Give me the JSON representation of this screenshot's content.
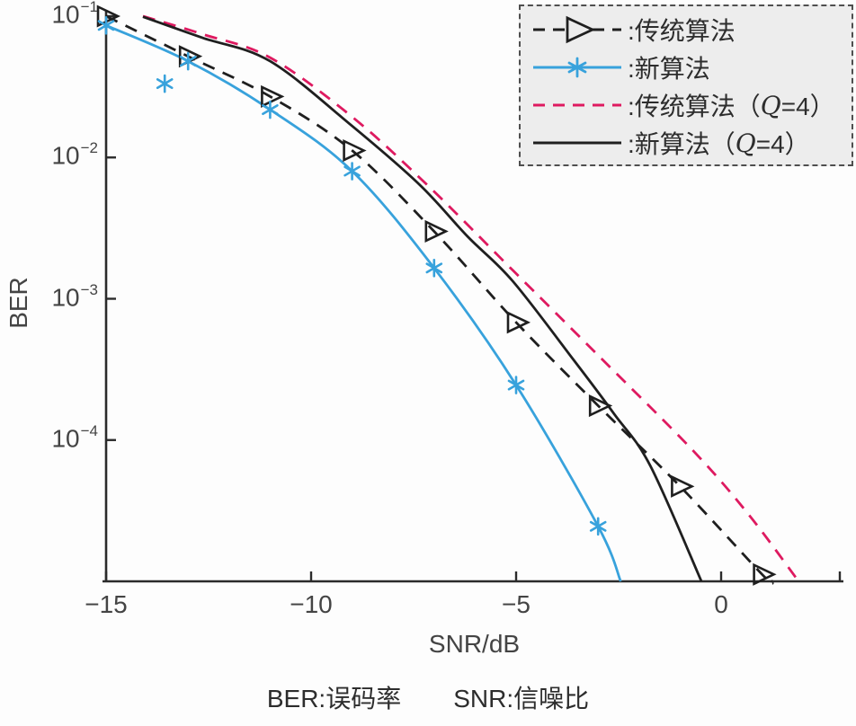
{
  "figure": {
    "caption": {
      "left": "BER:误码率",
      "right": "SNR:信噪比"
    }
  },
  "colors": {
    "axis": "#2b2b2b",
    "black": "#1f1f1f",
    "blue": "#38a2dc",
    "magenta": "#de1a60",
    "text": "#3a3a3a",
    "legend_bg": "#ededed",
    "page_bg": "#fdfdfd"
  },
  "chart_data": {
    "type": "line",
    "title": "",
    "xlabel": "SNR/dB",
    "ylabel": "BER",
    "xlim": [
      -15,
      2.9
    ],
    "ylog": true,
    "ylim": [
      1e-05,
      0.1
    ],
    "grid": false,
    "legend_position": "top-right",
    "x_ticks": [
      {
        "v": -15,
        "t": "−15"
      },
      {
        "v": -10,
        "t": "−10"
      },
      {
        "v": -5,
        "t": "−5"
      },
      {
        "v": 0,
        "t": "0"
      }
    ],
    "y_ticks": [
      {
        "exp": -1,
        "base": "10",
        "sup": "−1"
      },
      {
        "exp": -2,
        "base": "10",
        "sup": "−2"
      },
      {
        "exp": -3,
        "base": "10",
        "sup": "−3"
      },
      {
        "exp": -4,
        "base": "10",
        "sup": "−4"
      }
    ],
    "series": [
      {
        "key": "traditional",
        "label": "传统算法",
        "color": "#1f1f1f",
        "line": "dashed",
        "marker": "triangle",
        "points": [
          [
            -15,
            0.1
          ],
          [
            -13,
            0.052
          ],
          [
            -11,
            0.027
          ],
          [
            -9,
            0.0112
          ],
          [
            -7,
            0.003
          ],
          [
            -5,
            0.00068
          ],
          [
            -3,
            0.000175
          ],
          [
            -1,
            4.7e-05
          ],
          [
            1,
            1.12e-05
          ]
        ],
        "tail": [
          [
            1.25,
            1e-05
          ]
        ]
      },
      {
        "key": "new",
        "label": "新算法",
        "color": "#38a2dc",
        "line": "solid",
        "marker": "asterisk",
        "points": [
          [
            -15,
            0.086
          ],
          [
            -13,
            0.048
          ],
          [
            -11,
            0.0218
          ],
          [
            -9,
            0.008
          ],
          [
            -7,
            0.00165
          ],
          [
            -5,
            0.000245
          ],
          [
            -3,
            2.45e-05
          ]
        ],
        "tail": [
          [
            -2.45,
            1e-05
          ]
        ],
        "stray_markers": [
          [
            -13.57,
            0.0333
          ]
        ]
      },
      {
        "key": "traditional-q4",
        "label": "传统算法（Q=4）",
        "color": "#de1a60",
        "line": "dashed",
        "marker": "none",
        "points": [
          [
            -14.1,
            0.1
          ],
          [
            -12.65,
            0.0746
          ],
          [
            -11,
            0.0509
          ],
          [
            -9,
            0.0194
          ],
          [
            -7.17,
            0.0064
          ],
          [
            -5.09,
            0.0016
          ],
          [
            -2.89,
            0.00037
          ],
          [
            -0.7,
            8.5e-05
          ],
          [
            0.66,
            3e-05
          ],
          [
            1.89,
            1e-05
          ]
        ]
      },
      {
        "key": "new-q4",
        "label": "新算法（Q=4）",
        "color": "#1f1f1f",
        "line": "solid",
        "marker": "none",
        "points": [
          [
            -14.1,
            0.099
          ],
          [
            -12.65,
            0.0703
          ],
          [
            -11,
            0.048
          ],
          [
            -9,
            0.0167
          ],
          [
            -7.35,
            0.0064
          ],
          [
            -6.18,
            0.00275
          ],
          [
            -5.09,
            0.00134
          ],
          [
            -3.6,
            0.00037
          ],
          [
            -2.61,
            0.000153
          ],
          [
            -1.73,
            6.6e-05
          ],
          [
            -0.48,
            1e-05
          ]
        ]
      }
    ]
  },
  "legend": {
    "items": [
      {
        "series": "traditional",
        "parts": [
          {
            "t": ":传统算法",
            "i": false
          }
        ]
      },
      {
        "series": "new",
        "parts": [
          {
            "t": ":新算法",
            "i": false
          }
        ]
      },
      {
        "series": "traditional-q4",
        "parts": [
          {
            "t": ":传统算法（",
            "i": false
          },
          {
            "t": "Q",
            "i": true
          },
          {
            "t": "=4）",
            "i": false
          }
        ]
      },
      {
        "series": "new-q4",
        "parts": [
          {
            "t": ":新算法（",
            "i": false
          },
          {
            "t": "Q",
            "i": true
          },
          {
            "t": "=4）",
            "i": false
          }
        ]
      }
    ]
  }
}
